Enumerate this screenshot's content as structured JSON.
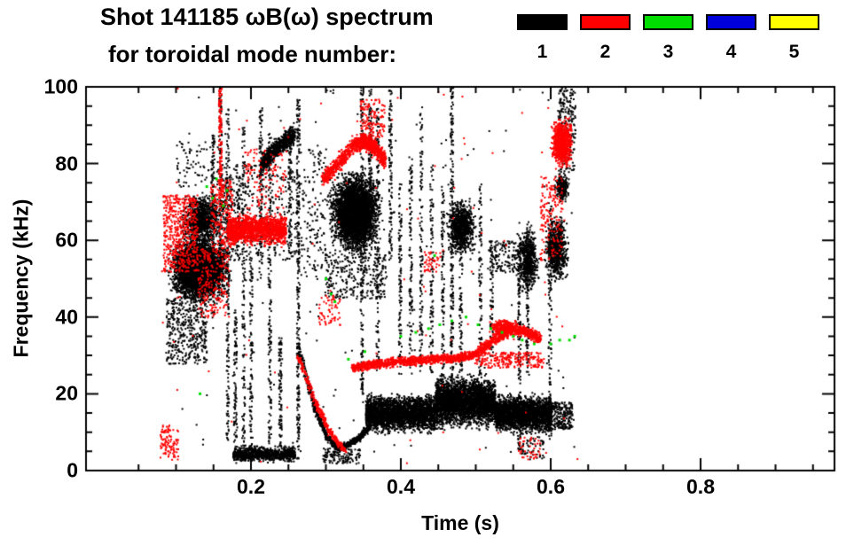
{
  "header": {
    "title": "Shot 141185 ωB(ω) spectrum",
    "subtitle": "for toroidal mode number:"
  },
  "chart_data": {
    "type": "scatter",
    "title": "Shot 141185 ωB(ω) spectrum",
    "subtitle": "for toroidal mode number:",
    "xlabel": "Time (s)",
    "ylabel": "Frequency (kHz)",
    "xlim": [
      0.0,
      1.0
    ],
    "ylim": [
      0,
      100
    ],
    "xticks": [
      0.2,
      0.4,
      0.6,
      0.8
    ],
    "x_minor_step": 0.05,
    "yticks": [
      0,
      20,
      40,
      60,
      80,
      100
    ],
    "y_minor_step": 5,
    "grid": false,
    "legend_position": "top-right",
    "legend": [
      {
        "label": "1",
        "color": "#000000"
      },
      {
        "label": "2",
        "color": "#ff0000"
      },
      {
        "label": "3",
        "color": "#00dd00"
      },
      {
        "label": "4",
        "color": "#0000dd"
      },
      {
        "label": "5",
        "color": "#ffff00"
      }
    ],
    "series": [
      {
        "name": "toroidal mode n=1",
        "mode": 1,
        "color": "#000000",
        "clusters": [
          {
            "kind": "blob",
            "t": [
              0.085,
              0.175
            ],
            "f": [
              43,
              62
            ],
            "n": 4500
          },
          {
            "kind": "blob",
            "t": [
              0.1,
              0.165
            ],
            "f": [
              57,
              74
            ],
            "n": 1000
          },
          {
            "kind": "dots",
            "t": [
              0.085,
              0.14
            ],
            "f": [
              28,
              45
            ],
            "n": 400
          },
          {
            "kind": "dots",
            "t": [
              0.1,
              0.155
            ],
            "f": [
              74,
              86
            ],
            "n": 80
          },
          {
            "kind": "streak",
            "t": 0.148,
            "f": [
              40,
              88
            ],
            "n": 130
          },
          {
            "kind": "streak",
            "t": 0.158,
            "f": [
              55,
              100
            ],
            "n": 120
          },
          {
            "kind": "streak",
            "t": 0.168,
            "f": [
              8,
              95
            ],
            "n": 190
          },
          {
            "kind": "streak",
            "t": 0.178,
            "f": [
              3,
              42
            ],
            "n": 110
          },
          {
            "kind": "streak",
            "t": 0.189,
            "f": [
              3,
              90
            ],
            "n": 150
          },
          {
            "kind": "streak",
            "t": 0.199,
            "f": [
              3,
              65
            ],
            "n": 130
          },
          {
            "kind": "streak",
            "t": 0.212,
            "f": [
              50,
              95
            ],
            "n": 120
          },
          {
            "kind": "streak",
            "t": 0.224,
            "f": [
              3,
              88
            ],
            "n": 160
          },
          {
            "kind": "streak",
            "t": 0.238,
            "f": [
              3,
              35
            ],
            "n": 100
          },
          {
            "kind": "streak",
            "t": 0.251,
            "f": [
              55,
              90
            ],
            "n": 100
          },
          {
            "kind": "streak",
            "t": 0.262,
            "f": [
              3,
              97
            ],
            "n": 280
          },
          {
            "kind": "band",
            "t": [
              0.175,
              0.258
            ],
            "f": [
              2,
              7
            ],
            "n": 900
          },
          {
            "kind": "dots",
            "t": [
              0.16,
              0.185
            ],
            "f": [
              55,
              80
            ],
            "n": 200
          },
          {
            "kind": "dots",
            "t": [
              0.18,
              0.26
            ],
            "f": [
              55,
              80
            ],
            "n": 250
          },
          {
            "kind": "dots",
            "t": [
              0.265,
              0.3
            ],
            "f": [
              50,
              85
            ],
            "n": 150
          },
          {
            "kind": "path",
            "pts": [
              [
                0.213,
                80
              ],
              [
                0.233,
                84
              ],
              [
                0.258,
                88
              ]
            ],
            "w": 3.5,
            "n": 700
          },
          {
            "kind": "blob",
            "t": [
              0.298,
              0.378
            ],
            "f": [
              55,
              80
            ],
            "n": 3800
          },
          {
            "kind": "dots",
            "t": [
              0.298,
              0.38
            ],
            "f": [
              45,
              57
            ],
            "n": 300
          },
          {
            "kind": "streak",
            "t": 0.347,
            "f": [
              20,
              100
            ],
            "n": 180
          },
          {
            "kind": "streak",
            "t": 0.358,
            "f": [
              60,
              100
            ],
            "n": 110
          },
          {
            "kind": "streak",
            "t": 0.368,
            "f": [
              25,
              95
            ],
            "n": 130
          },
          {
            "kind": "streak",
            "t": 0.385,
            "f": [
              55,
              100
            ],
            "n": 120
          },
          {
            "kind": "streak",
            "t": 0.398,
            "f": [
              25,
              75
            ],
            "n": 110
          },
          {
            "kind": "streak",
            "t": 0.412,
            "f": [
              25,
              82
            ],
            "n": 120
          },
          {
            "kind": "streak",
            "t": 0.426,
            "f": [
              25,
              95
            ],
            "n": 130
          },
          {
            "kind": "streak",
            "t": 0.44,
            "f": [
              25,
              80
            ],
            "n": 110
          },
          {
            "kind": "streak",
            "t": 0.455,
            "f": [
              20,
              75
            ],
            "n": 110
          },
          {
            "kind": "streak",
            "t": 0.467,
            "f": [
              20,
              100
            ],
            "n": 230
          },
          {
            "kind": "streak",
            "t": 0.479,
            "f": [
              25,
              62
            ],
            "n": 90
          },
          {
            "kind": "streak",
            "t": 0.505,
            "f": [
              25,
              75
            ],
            "n": 100
          },
          {
            "kind": "streak",
            "t": 0.52,
            "f": [
              30,
              60
            ],
            "n": 70
          },
          {
            "kind": "blob",
            "t": [
              0.458,
              0.502
            ],
            "f": [
              55,
              72
            ],
            "n": 900
          },
          {
            "kind": "path",
            "pts": [
              [
                0.262,
                32
              ],
              [
                0.283,
                17
              ],
              [
                0.3,
                9
              ],
              [
                0.315,
                6
              ],
              [
                0.33,
                7
              ],
              [
                0.345,
                9
              ],
              [
                0.358,
                12
              ]
            ],
            "w": 1.2,
            "n": 800
          },
          {
            "kind": "band",
            "t": [
              0.352,
              0.445
            ],
            "f": [
              9,
              21
            ],
            "n": 2800
          },
          {
            "kind": "band",
            "t": [
              0.445,
              0.525
            ],
            "f": [
              10,
              26
            ],
            "n": 3200
          },
          {
            "kind": "band",
            "t": [
              0.525,
              0.6
            ],
            "f": [
              9,
              21
            ],
            "n": 2500
          },
          {
            "kind": "dots",
            "t": [
              0.6,
              0.628
            ],
            "f": [
              11,
              18
            ],
            "n": 220
          },
          {
            "kind": "dots",
            "t": [
              0.295,
              0.345
            ],
            "f": [
              2,
              6
            ],
            "n": 130
          },
          {
            "kind": "dots",
            "t": [
              0.555,
              0.59
            ],
            "f": [
              3,
              9
            ],
            "n": 60
          },
          {
            "kind": "streak",
            "t": 0.557,
            "f": [
              5,
              62
            ],
            "n": 150
          },
          {
            "kind": "streak",
            "t": 0.568,
            "f": [
              25,
              65
            ],
            "n": 100
          },
          {
            "kind": "blob",
            "t": [
              0.552,
              0.585
            ],
            "f": [
              45,
              65
            ],
            "n": 550
          },
          {
            "kind": "blob",
            "t": [
              0.588,
              0.625
            ],
            "f": [
              48,
              68
            ],
            "n": 750
          },
          {
            "kind": "streak",
            "t": 0.598,
            "f": [
              8,
              70
            ],
            "n": 120
          },
          {
            "kind": "blob",
            "t": [
              0.602,
              0.625
            ],
            "f": [
              70,
              78
            ],
            "n": 260
          },
          {
            "kind": "dots",
            "t": [
              0.608,
              0.632
            ],
            "f": [
              78,
              100
            ],
            "n": 220
          },
          {
            "kind": "dots",
            "t": [
              0.515,
              0.555
            ],
            "f": [
              52,
              60
            ],
            "n": 130
          },
          {
            "kind": "dots",
            "t": [
              0.08,
              0.635
            ],
            "f": [
              2,
              100
            ],
            "n": 150
          }
        ]
      },
      {
        "name": "toroidal mode n=2",
        "mode": 2,
        "color": "#ff0000",
        "clusters": [
          {
            "kind": "dots",
            "t": [
              0.082,
              0.128
            ],
            "f": [
              52,
              72
            ],
            "n": 550
          },
          {
            "kind": "dots",
            "t": [
              0.078,
              0.102
            ],
            "f": [
              3,
              12
            ],
            "n": 100
          },
          {
            "kind": "dots",
            "t": [
              0.128,
              0.17
            ],
            "f": [
              40,
              58
            ],
            "n": 220
          },
          {
            "kind": "streak",
            "t": 0.158,
            "f": [
              70,
              100
            ],
            "n": 130
          },
          {
            "kind": "dots",
            "t": [
              0.145,
              0.175
            ],
            "f": [
              58,
              76
            ],
            "n": 220
          },
          {
            "kind": "band",
            "t": [
              0.168,
              0.246
            ],
            "f": [
              58,
              68
            ],
            "n": 1600
          },
          {
            "kind": "dots",
            "t": [
              0.19,
              0.246
            ],
            "f": [
              68,
              84
            ],
            "n": 120
          },
          {
            "kind": "path",
            "pts": [
              [
                0.295,
                76
              ],
              [
                0.315,
                80
              ],
              [
                0.335,
                85
              ],
              [
                0.35,
                86
              ],
              [
                0.365,
                84
              ],
              [
                0.378,
                81
              ]
            ],
            "w": 3,
            "n": 1000
          },
          {
            "kind": "dots",
            "t": [
              0.345,
              0.378
            ],
            "f": [
              87,
              97
            ],
            "n": 130
          },
          {
            "kind": "path",
            "pts": [
              [
                0.262,
                30
              ],
              [
                0.285,
                18
              ],
              [
                0.305,
                10
              ],
              [
                0.325,
                5
              ]
            ],
            "w": 1,
            "n": 320
          },
          {
            "kind": "path",
            "pts": [
              [
                0.335,
                27
              ],
              [
                0.37,
                28
              ],
              [
                0.42,
                29
              ],
              [
                0.47,
                29.5
              ],
              [
                0.502,
                30.5
              ]
            ],
            "w": 1.6,
            "n": 1200
          },
          {
            "kind": "path",
            "pts": [
              [
                0.502,
                31
              ],
              [
                0.522,
                34
              ],
              [
                0.545,
                37
              ],
              [
                0.565,
                36.5
              ],
              [
                0.585,
                34.5
              ]
            ],
            "w": 2,
            "n": 650
          },
          {
            "kind": "blob",
            "t": [
              0.515,
              0.558
            ],
            "f": [
              34,
              40
            ],
            "n": 420
          },
          {
            "kind": "dots",
            "t": [
              0.5,
              0.59
            ],
            "f": [
              27,
              31
            ],
            "n": 220
          },
          {
            "kind": "blob",
            "t": [
              0.598,
              0.63
            ],
            "f": [
              78,
              93
            ],
            "n": 950
          },
          {
            "kind": "dots",
            "t": [
              0.585,
              0.615
            ],
            "f": [
              55,
              77
            ],
            "n": 170
          },
          {
            "kind": "dots",
            "t": [
              0.43,
              0.452
            ],
            "f": [
              52,
              58
            ],
            "n": 40
          },
          {
            "kind": "dots",
            "t": [
              0.29,
              0.318
            ],
            "f": [
              38,
              46
            ],
            "n": 60
          },
          {
            "kind": "dots",
            "t": [
              0.555,
              0.585
            ],
            "f": [
              3,
              9
            ],
            "n": 40
          },
          {
            "kind": "dots",
            "t": [
              0.08,
              0.635
            ],
            "f": [
              2,
              100
            ],
            "n": 90
          }
        ]
      },
      {
        "name": "toroidal mode n=3",
        "mode": 3,
        "color": "#00dd00",
        "clusters": [
          {
            "kind": "points",
            "size": 3,
            "pts": [
              [
                0.132,
                20
              ],
              [
                0.141,
                74
              ],
              [
                0.149,
                71
              ],
              [
                0.154,
                76
              ],
              [
                0.163,
                69
              ],
              [
                0.168,
                73
              ],
              [
                0.3,
                50
              ],
              [
                0.307,
                46
              ],
              [
                0.312,
                44
              ],
              [
                0.33,
                29
              ],
              [
                0.352,
                31
              ],
              [
                0.4,
                35
              ],
              [
                0.42,
                36
              ],
              [
                0.437,
                37
              ],
              [
                0.445,
                56
              ],
              [
                0.452,
                38
              ],
              [
                0.468,
                39
              ],
              [
                0.487,
                40
              ],
              [
                0.503,
                38
              ],
              [
                0.52,
                37
              ],
              [
                0.535,
                36
              ],
              [
                0.55,
                35
              ],
              [
                0.562,
                34
              ],
              [
                0.578,
                33
              ],
              [
                0.6,
                33
              ],
              [
                0.612,
                34
              ],
              [
                0.625,
                34
              ],
              [
                0.632,
                35
              ]
            ]
          }
        ]
      },
      {
        "name": "toroidal mode n=4",
        "mode": 4,
        "color": "#0000dd",
        "clusters": []
      },
      {
        "name": "toroidal mode n=5",
        "mode": 5,
        "color": "#ffff00",
        "clusters": []
      }
    ]
  }
}
